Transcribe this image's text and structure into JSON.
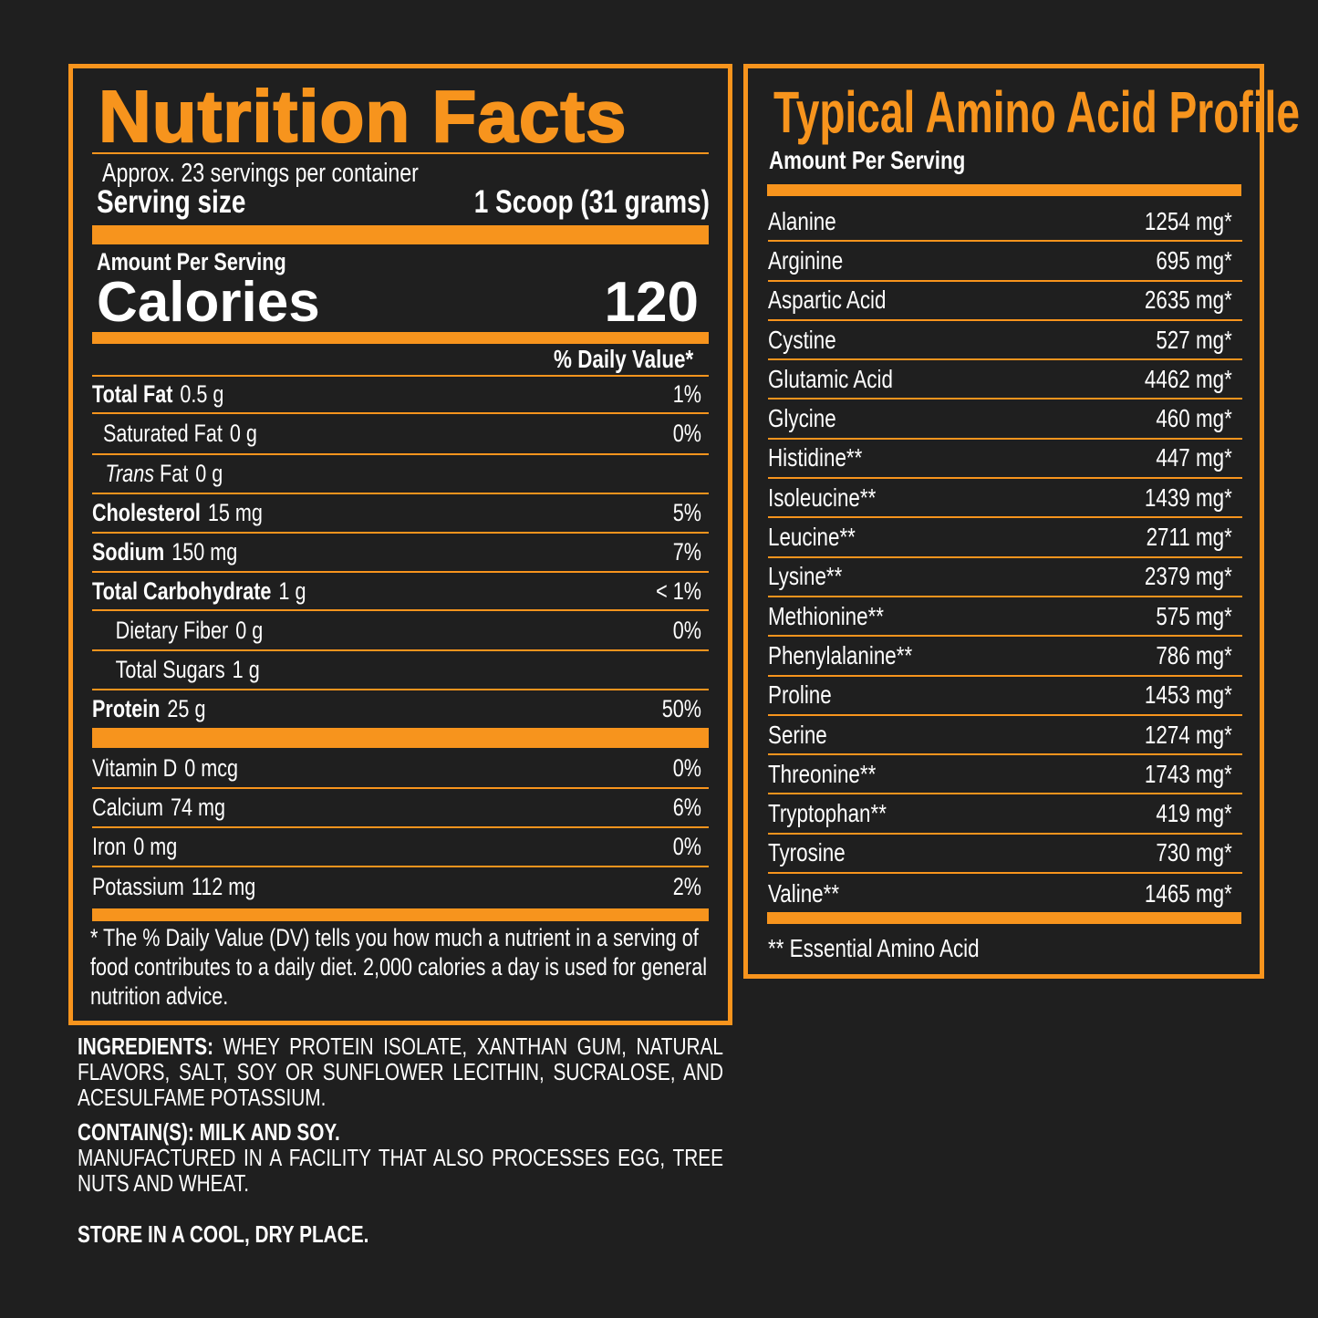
{
  "nutrition": {
    "title": "Nutrition Facts",
    "servings": "Approx. 23 servings per container",
    "serving_size_label": "Serving size",
    "serving_size_value": "1 Scoop (31 grams)",
    "amount_per_serving": "Amount Per Serving",
    "calories_label": "Calories",
    "calories_value": "120",
    "dv_header": "% Daily Value*",
    "nutrients": [
      {
        "name": "Total Fat",
        "amount": "0.5 g",
        "dv": "1%",
        "bold": true,
        "indent": 0
      },
      {
        "name": "Saturated Fat",
        "amount": "0 g",
        "dv": "0%",
        "bold": false,
        "indent": 1
      },
      {
        "italic_prefix": "Trans",
        "name": "Fat",
        "amount": "0 g",
        "dv": "",
        "bold": false,
        "indent": 1
      },
      {
        "name": "Cholesterol",
        "amount": "15 mg",
        "dv": "5%",
        "bold": true,
        "indent": 0
      },
      {
        "name": "Sodium",
        "amount": "150 mg",
        "dv": "7%",
        "bold": true,
        "indent": 0
      },
      {
        "name": "Total Carbohydrate",
        "amount": "1 g",
        "dv": "< 1%",
        "bold": true,
        "indent": 0
      },
      {
        "name": "Dietary Fiber",
        "amount": "0 g",
        "dv": "0%",
        "bold": false,
        "indent": 2
      },
      {
        "name": "Total Sugars",
        "amount": "1 g",
        "dv": "",
        "bold": false,
        "indent": 2
      },
      {
        "name": "Protein",
        "amount": "25 g",
        "dv": "50%",
        "bold": true,
        "indent": 0
      }
    ],
    "vitamins": [
      {
        "name": "Vitamin D",
        "amount": "0 mcg",
        "dv": "0%"
      },
      {
        "name": "Calcium",
        "amount": "74 mg",
        "dv": "6%"
      },
      {
        "name": "Iron",
        "amount": "0 mg",
        "dv": "0%"
      },
      {
        "name": "Potassium",
        "amount": "112 mg",
        "dv": "2%"
      }
    ],
    "footnote": "* The % Daily Value (DV) tells you how much a nutrient in a serving of food contributes to a daily diet. 2,000 calories a day is used for general nutrition advice."
  },
  "amino": {
    "title": "Typical Amino Acid Profile",
    "subtitle": "Amount Per Serving",
    "rows": [
      {
        "name": "Alanine",
        "value": "1254 mg",
        "mark": "*"
      },
      {
        "name": "Arginine",
        "value": "695 mg",
        "mark": "*"
      },
      {
        "name": "Aspartic Acid",
        "value": "2635 mg",
        "mark": "*"
      },
      {
        "name": "Cystine",
        "value": "527 mg",
        "mark": "*"
      },
      {
        "name": "Glutamic Acid",
        "value": "4462 mg",
        "mark": "*"
      },
      {
        "name": "Glycine",
        "value": "460 mg",
        "mark": "*"
      },
      {
        "name": "Histidine**",
        "value": "447 mg",
        "mark": "*"
      },
      {
        "name": "Isoleucine**",
        "value": "1439 mg",
        "mark": "*"
      },
      {
        "name": "Leucine**",
        "value": "2711 mg",
        "mark": "*"
      },
      {
        "name": "Lysine**",
        "value": "2379 mg",
        "mark": "*"
      },
      {
        "name": "Methionine**",
        "value": "575 mg",
        "mark": "*"
      },
      {
        "name": "Phenylalanine**",
        "value": "786 mg",
        "mark": "*"
      },
      {
        "name": "Proline",
        "value": "1453 mg",
        "mark": "*"
      },
      {
        "name": "Serine",
        "value": "1274 mg",
        "mark": "*"
      },
      {
        "name": "Threonine**",
        "value": "1743 mg",
        "mark": "*"
      },
      {
        "name": "Tryptophan**",
        "value": "419 mg",
        "mark": "*"
      },
      {
        "name": "Tyrosine",
        "value": "730 mg",
        "mark": "*"
      },
      {
        "name": "Valine**",
        "value": "1465 mg",
        "mark": "*"
      }
    ],
    "footnote": "** Essential Amino Acid"
  },
  "ingredients": {
    "label": "INGREDIENTS:",
    "text": " WHEY PROTEIN ISOLATE, XANTHAN GUM, NATURAL FLAVORS, SALT, SOY OR SUNFLOWER LECITHIN, SUCRALOSE, AND ACESULFAME POTASSIUM.",
    "contains": "CONTAIN(S): MILK AND SOY.",
    "facility": "MANUFACTURED IN A FACILITY THAT ALSO PROCESSES EGG, TREE NUTS AND WHEAT.",
    "storage": "STORE IN A COOL, DRY PLACE."
  },
  "colors": {
    "accent": "#f7941d",
    "background": "#1f1f1f",
    "text": "#ffffff"
  }
}
